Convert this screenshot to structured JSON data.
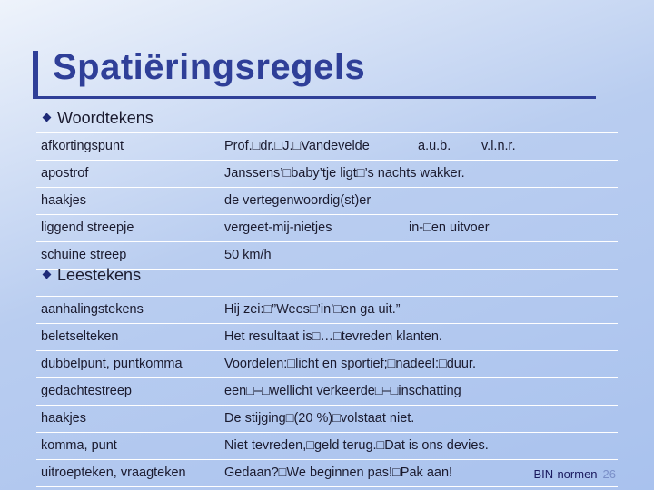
{
  "title": "Spatiëringsregels",
  "sections": [
    {
      "heading": "Woordtekens",
      "rows": [
        {
          "term": "afkortingspunt",
          "example": "Prof.□dr.□J.□Vandevelde",
          "example2": "a.u.b.",
          "example3": "v.l.n.r."
        },
        {
          "term": "apostrof",
          "example": "Janssens’□baby’tje ligt□’s nachts wakker."
        },
        {
          "term": "haakjes",
          "example": "de vertegenwoordig(st)er"
        },
        {
          "term": "liggend streepje",
          "example": "vergeet-mij-nietjes",
          "example2": "in-□en uitvoer"
        },
        {
          "term": "schuine streep",
          "example": "50 km/h"
        }
      ]
    },
    {
      "heading": "Leestekens",
      "rows": [
        {
          "term": "aanhalingstekens",
          "example": "Hij zei:□”Wees□’in’□en ga uit.”"
        },
        {
          "term": "beletselteken",
          "example": "Het resultaat is□…□tevreden klanten."
        },
        {
          "term": "dubbelpunt, puntkomma",
          "example": "Voordelen:□licht en sportief;□nadeel:□duur."
        },
        {
          "term": "gedachtestreep",
          "example": "een□–□wellicht verkeerde□–□inschatting"
        },
        {
          "term": "haakjes",
          "example": "De stijging□(20 %)□volstaat niet."
        },
        {
          "term": "komma, punt",
          "example": "Niet tevreden,□geld terug.□Dat is ons devies."
        },
        {
          "term": "uitroepteken, vraagteken",
          "example": "Gedaan?□We beginnen pas!□Pak aan!"
        }
      ]
    }
  ],
  "footer": {
    "label": "BIN-normen",
    "page": "26"
  }
}
